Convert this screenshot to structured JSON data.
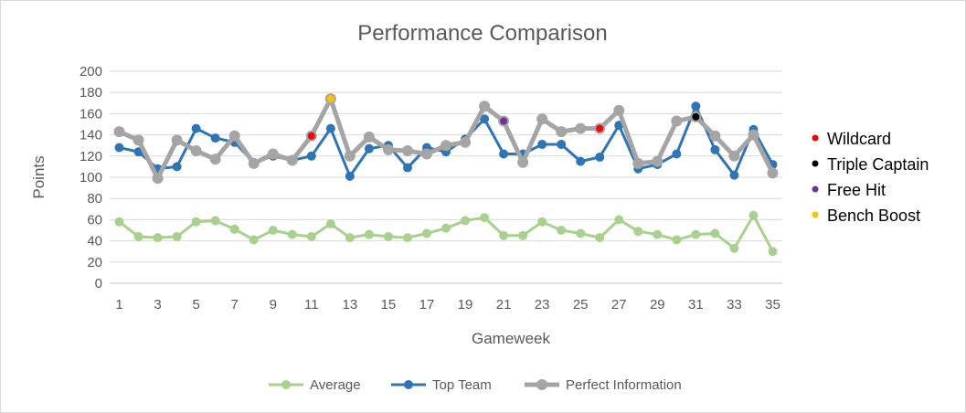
{
  "chart_data": {
    "type": "line",
    "title": "Performance Comparison",
    "xlabel": "Gameweek",
    "ylabel": "Points",
    "ylim": [
      0,
      200
    ],
    "yticks": [
      0,
      20,
      40,
      60,
      80,
      100,
      120,
      140,
      160,
      180,
      200
    ],
    "x": [
      1,
      2,
      3,
      4,
      5,
      6,
      7,
      8,
      9,
      10,
      11,
      12,
      13,
      14,
      15,
      16,
      17,
      18,
      19,
      20,
      21,
      22,
      23,
      24,
      25,
      26,
      27,
      28,
      29,
      30,
      31,
      32,
      33,
      34,
      35
    ],
    "xtick_labels": [
      "1",
      "3",
      "5",
      "7",
      "9",
      "11",
      "13",
      "15",
      "17",
      "19",
      "21",
      "23",
      "25",
      "27",
      "29",
      "31",
      "33",
      "35"
    ],
    "grid": "horizontal",
    "legend_position": "bottom",
    "series": [
      {
        "name": "Average",
        "color": "#a9d18e",
        "values": [
          58,
          44,
          43,
          44,
          58,
          59,
          51,
          41,
          50,
          46,
          44,
          56,
          43,
          46,
          44,
          43,
          47,
          52,
          59,
          62,
          45,
          45,
          58,
          50,
          47,
          43,
          60,
          49,
          46,
          41,
          46,
          47,
          33,
          64,
          30
        ]
      },
      {
        "name": "Top Team",
        "color": "#2e75b6",
        "values": [
          128,
          124,
          108,
          110,
          146,
          137,
          133,
          114,
          120,
          116,
          120,
          146,
          101,
          127,
          130,
          109,
          128,
          124,
          136,
          155,
          122,
          122,
          131,
          131,
          115,
          119,
          149,
          108,
          112,
          122,
          167,
          126,
          102,
          145,
          112
        ]
      },
      {
        "name": "Perfect Information",
        "color": "#a5a5a5",
        "values": [
          143,
          135,
          99,
          135,
          125,
          117,
          139,
          113,
          122,
          116,
          139,
          174,
          120,
          138,
          126,
          125,
          122,
          130,
          133,
          167,
          153,
          114,
          155,
          143,
          146,
          146,
          163,
          113,
          115,
          153,
          157,
          139,
          120,
          140,
          104
        ]
      }
    ],
    "chip_legend": [
      {
        "label": "Wildcard",
        "color": "#ff0000"
      },
      {
        "label": "Triple Captain",
        "color": "#000000"
      },
      {
        "label": "Free Hit",
        "color": "#7030a0"
      },
      {
        "label": "Bench Boost",
        "color": "#ffc000"
      }
    ],
    "chip_points": [
      {
        "chip": "Wildcard",
        "x": 11,
        "y": 139,
        "color": "#ff0000"
      },
      {
        "chip": "Bench Boost",
        "x": 12,
        "y": 174,
        "color": "#ffc000"
      },
      {
        "chip": "Free Hit",
        "x": 21,
        "y": 153,
        "color": "#7030a0"
      },
      {
        "chip": "Wildcard",
        "x": 26,
        "y": 146,
        "color": "#ff0000"
      },
      {
        "chip": "Triple Captain",
        "x": 31,
        "y": 157,
        "color": "#000000"
      }
    ]
  }
}
